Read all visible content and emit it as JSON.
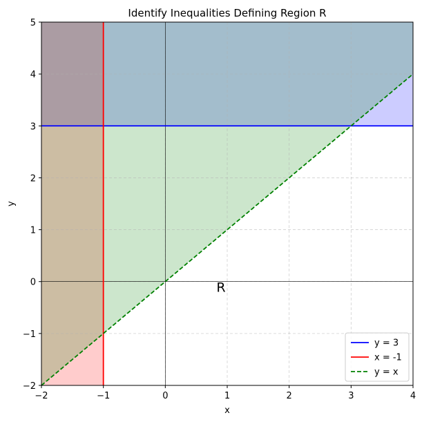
{
  "chart_data": {
    "type": "line",
    "title": "Identify Inequalities Defining Region R",
    "xlabel": "x",
    "ylabel": "y",
    "xlim": [
      -2,
      4
    ],
    "ylim": [
      -2,
      5
    ],
    "xticks": [
      -2,
      -1,
      0,
      1,
      2,
      3,
      4
    ],
    "yticks": [
      -2,
      -1,
      0,
      1,
      2,
      3,
      4,
      5
    ],
    "grid": true,
    "legend_position": "lower right",
    "series": [
      {
        "name": "y = 3",
        "color": "#0000ff",
        "style": "solid",
        "x": [
          -2,
          4
        ],
        "y": [
          3,
          3
        ]
      },
      {
        "name": "x = -1",
        "color": "#ff0000",
        "style": "solid",
        "x": [
          -1,
          -1
        ],
        "y": [
          -2,
          5
        ]
      },
      {
        "name": "y = x",
        "color": "#008000",
        "style": "dashed",
        "x": [
          -2,
          4
        ],
        "y": [
          -2,
          4
        ]
      }
    ],
    "shaded_regions": [
      {
        "label": "y >= 3",
        "color": "#0000ff",
        "opacity": 0.2
      },
      {
        "label": "x <= -1",
        "color": "#ff0000",
        "opacity": 0.2
      },
      {
        "label": "y >= x",
        "color": "#008000",
        "opacity": 0.2
      }
    ],
    "annotations": [
      {
        "text": "R",
        "x": 0.9,
        "y": -0.2
      }
    ]
  }
}
